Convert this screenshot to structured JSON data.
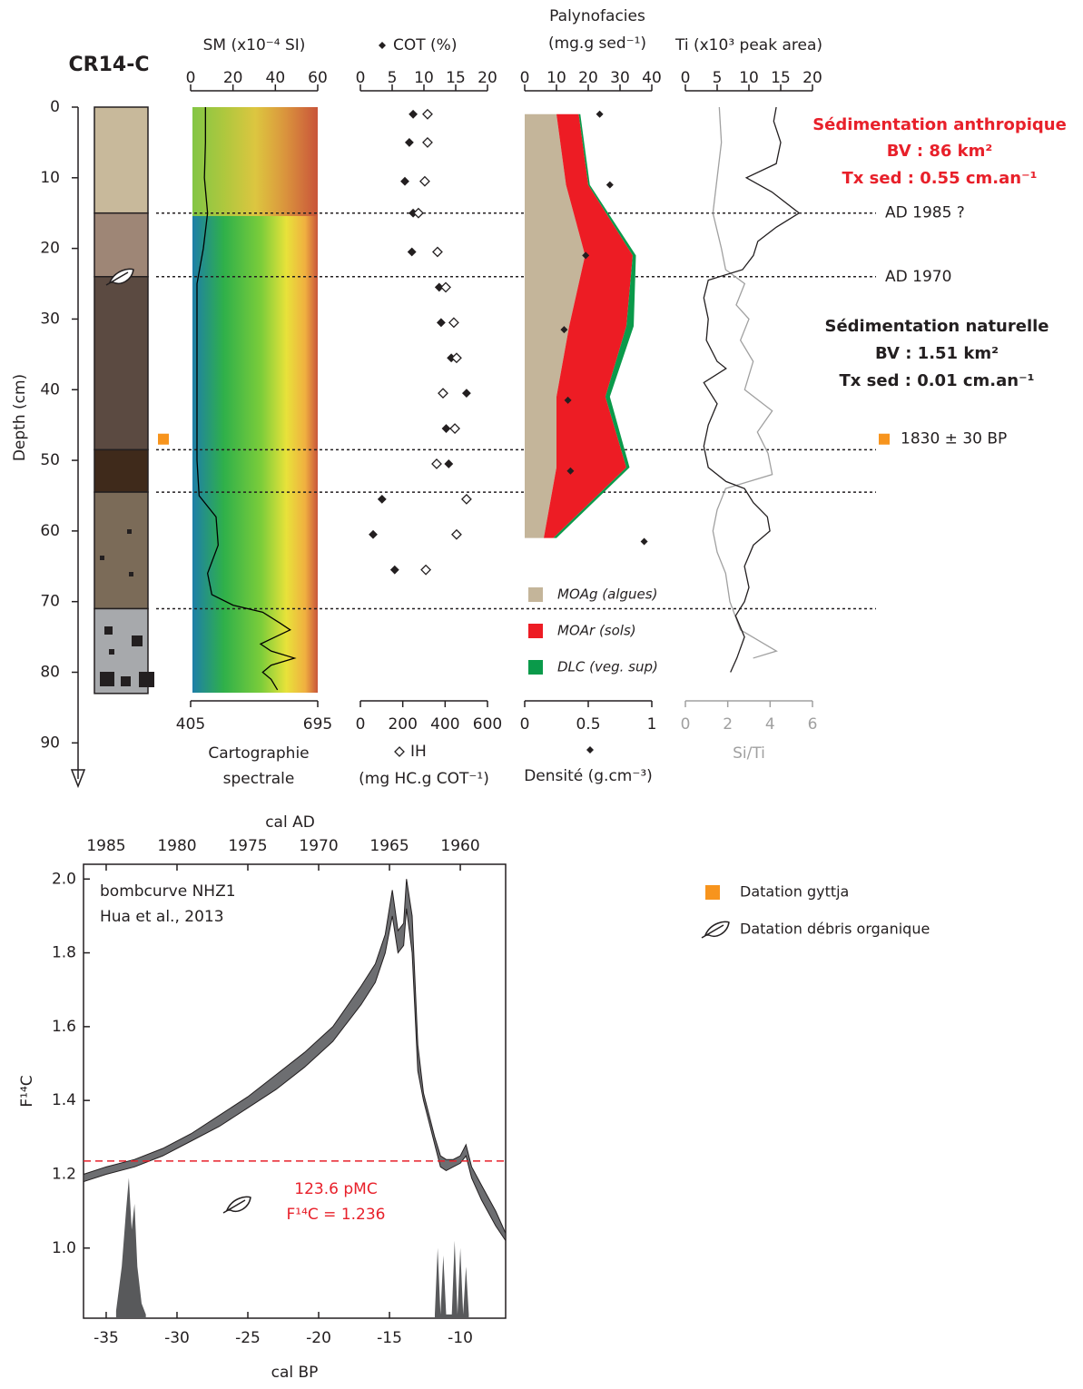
{
  "chart_data": [
    {
      "type": "strat-column",
      "title": "CR14-C",
      "ylabel": "Depth (cm)",
      "ylim": [
        0,
        96
      ],
      "yticks": [
        0,
        10,
        20,
        30,
        40,
        50,
        60,
        70,
        80,
        90
      ],
      "units": {
        "depths": [
          0,
          15,
          24,
          48.5,
          54.5,
          71,
          83
        ],
        "colors": [
          "#c8b99b",
          "#9e8676",
          "#5b4a41",
          "#3f2a1b",
          "#7b6b58",
          "#a7a9ac"
        ]
      },
      "horizons": [
        15,
        24,
        48.5,
        54.5,
        71
      ],
      "ages": [
        {
          "depth": 15,
          "label": "AD 1985 ?"
        },
        {
          "depth": 24,
          "label": "AD 1970"
        },
        {
          "depth": 47,
          "label": "1830 ± 30 BP",
          "marker_color": "#f7941d"
        }
      ],
      "annotations": [
        {
          "lines": [
            "Sédimentation anthropique",
            "BV : 86 km²",
            "Tx sed : 0.55 cm.an⁻¹"
          ],
          "color": "#e8202a"
        },
        {
          "lines": [
            "Sédimentation naturelle",
            "BV : 1.51 km²",
            "Tx sed : 0.01 cm.an⁻¹"
          ],
          "color": "#231f20"
        }
      ],
      "legend": [
        {
          "label": "Datation gyttja",
          "color": "#f7941d"
        },
        {
          "label": "Datation débris organique"
        }
      ]
    },
    {
      "type": "line",
      "title": "SM (x10⁻⁴ SI)",
      "xlim": [
        0,
        60
      ],
      "xticks": [
        0,
        20,
        40,
        60
      ],
      "color": "#000000",
      "depth": [
        0,
        5,
        10,
        15,
        20,
        25,
        30,
        35,
        40,
        45,
        50,
        55,
        58,
        62,
        66,
        69,
        70.5,
        71.5,
        73,
        74,
        75,
        76,
        77,
        78,
        79,
        80,
        81,
        82.5
      ],
      "values": [
        7,
        7,
        6.5,
        8,
        6,
        3,
        3,
        3,
        3,
        3,
        3,
        4,
        12,
        13,
        8,
        10,
        20,
        34,
        42,
        47,
        40,
        33,
        38,
        49,
        38,
        34,
        38,
        41
      ],
      "x2lim": [
        405,
        695
      ],
      "x2ticks": [
        405,
        695
      ],
      "x2label": [
        "Cartographie",
        "spectrale"
      ]
    },
    {
      "type": "scatter",
      "xlim": [
        0,
        20
      ],
      "xticks": [
        0,
        5,
        10,
        15,
        20
      ],
      "x2lim": [
        0,
        600
      ],
      "x2ticks": [
        0,
        200,
        400,
        600
      ],
      "x2label": "(mg HC.g COT⁻¹)",
      "series": [
        {
          "name": "COT (%)",
          "marker": "filled",
          "depth": [
            1,
            5,
            10.5,
            15,
            20.5,
            25.5,
            30.5,
            35.5,
            40.5,
            45.5,
            50.5,
            55.5,
            60.5,
            65.5
          ],
          "values": [
            8.3,
            7.7,
            7,
            8.3,
            8.1,
            12.4,
            12.7,
            14.3,
            16.7,
            13.5,
            13.9,
            3.4,
            2,
            5.4
          ]
        },
        {
          "name": "IH",
          "marker": "hollow",
          "axis": "x2",
          "depth": [
            1,
            5,
            10.5,
            15,
            20.5,
            25.5,
            30.5,
            35.5,
            40.5,
            45.5,
            50.5,
            55.5,
            60.5,
            65.5
          ],
          "values": [
            317,
            317,
            304,
            274,
            364,
            403,
            441,
            454,
            390,
            446,
            360,
            501,
            454,
            309
          ]
        }
      ]
    },
    {
      "type": "stacked-area",
      "title": [
        "Palynofacies",
        "(mg.g sed⁻¹)"
      ],
      "xlim": [
        0,
        40
      ],
      "xticks": [
        0,
        10,
        20,
        30,
        40
      ],
      "depth": [
        1,
        11,
        21,
        31,
        41,
        51,
        61
      ],
      "series": [
        {
          "name": "MOAg (algues)",
          "color": "#c4b59a",
          "values": [
            10,
            13,
            19,
            14,
            10,
            10,
            6
          ]
        },
        {
          "name": "MOAr (sols)",
          "color": "#ed1c24",
          "values": [
            7,
            7,
            15,
            18,
            15.4,
            22,
            3
          ]
        },
        {
          "name": "DLC (veg. sup)",
          "color": "#0a9a4a",
          "values": [
            0.5,
            0.5,
            1,
            2.3,
            1.4,
            1,
            1
          ]
        }
      ],
      "density": {
        "name": "Densité (g.cm⁻³)",
        "depth": [
          1,
          11,
          21,
          31.5,
          41.5,
          51.5,
          61.5
        ],
        "values": [
          0.59,
          0.67,
          0.48,
          0.31,
          0.34,
          0.36,
          0.94
        ]
      },
      "x2lim": [
        0,
        1
      ],
      "x2ticks": [
        0,
        0.5,
        1
      ]
    },
    {
      "type": "line",
      "title": "Ti (x10³ peak area)",
      "xlim": [
        0,
        20
      ],
      "xticks": [
        0,
        5,
        10,
        15,
        20
      ],
      "color": "#231f20",
      "depth": [
        0,
        2,
        5,
        8,
        10,
        12,
        15,
        17,
        19,
        21,
        23,
        24.5,
        27,
        30,
        33,
        36,
        37,
        39,
        42,
        45,
        48,
        51,
        53,
        54,
        56,
        58,
        60,
        62,
        65,
        68,
        70,
        72,
        75,
        78,
        80
      ],
      "values": [
        14.3,
        13.9,
        15,
        14.3,
        9.6,
        13.6,
        17.9,
        14.3,
        11.4,
        10.7,
        9,
        3.6,
        2.9,
        3.6,
        3.3,
        5,
        6.4,
        2.9,
        5,
        3.6,
        2.9,
        3.6,
        6.4,
        9.3,
        10.7,
        12.9,
        13.3,
        10.7,
        9.3,
        10,
        9.3,
        7.9,
        9.3,
        8.1,
        7.1
      ],
      "x2": {
        "name": "Si/Ti",
        "color": "#a0a0a0",
        "depth": [
          0,
          5,
          10,
          15,
          20,
          23,
          25,
          28,
          30,
          33,
          36,
          40,
          43,
          46,
          49,
          52,
          54,
          57,
          60,
          63,
          66,
          70,
          74,
          77,
          78
        ],
        "values": [
          1.6,
          1.7,
          1.5,
          1.3,
          1.7,
          1.9,
          2.8,
          2.4,
          3,
          2.6,
          3.2,
          2.8,
          4.1,
          3.4,
          3.9,
          4.1,
          1.9,
          1.5,
          1.3,
          1.5,
          1.9,
          2.1,
          2.6,
          4.3,
          3.2
        ]
      },
      "x2lim": [
        0,
        6
      ],
      "x2ticks": [
        0,
        2,
        4,
        6
      ]
    },
    {
      "type": "band",
      "xlabel": "cal BP",
      "ylabel": "F¹⁴C",
      "xlim": [
        -36.6,
        -6.8
      ],
      "xticks": [
        -35,
        -30,
        -25,
        -20,
        -15,
        -10
      ],
      "x2label": "cal AD",
      "x2lim": [
        1986.6,
        1956.8
      ],
      "x2ticks": [
        1985,
        1980,
        1975,
        1970,
        1965,
        1960
      ],
      "ylim": [
        0.81,
        2.04
      ],
      "yticks": [
        {
          "value": 1,
          "label": "1.0"
        },
        1.2,
        1.4,
        1.6,
        1.8,
        {
          "value": 2,
          "label": "2.0"
        }
      ],
      "annotations": [
        "bombcurve NHZ1",
        "Hua et al., 2013"
      ],
      "color": "#6d6e71",
      "x": [
        -36.6,
        -35,
        -33,
        -31,
        -29,
        -27,
        -25,
        -23,
        -21,
        -19,
        -17,
        -16,
        -15.3,
        -14.8,
        -14.4,
        -14,
        -13.8,
        -13.4,
        -13,
        -12.6,
        -12.2,
        -11.8,
        -11.4,
        -11,
        -10.5,
        -10,
        -9.6,
        -9.2,
        -8.5,
        -7.5,
        -6.8
      ],
      "upper": [
        1.2,
        1.22,
        1.24,
        1.27,
        1.31,
        1.36,
        1.41,
        1.47,
        1.53,
        1.6,
        1.71,
        1.77,
        1.85,
        1.97,
        1.86,
        1.88,
        2.0,
        1.9,
        1.55,
        1.42,
        1.36,
        1.3,
        1.25,
        1.24,
        1.24,
        1.25,
        1.28,
        1.22,
        1.17,
        1.1,
        1.04
      ],
      "lower": [
        1.18,
        1.2,
        1.22,
        1.25,
        1.29,
        1.33,
        1.38,
        1.43,
        1.49,
        1.56,
        1.66,
        1.72,
        1.8,
        1.9,
        1.8,
        1.82,
        1.92,
        1.8,
        1.48,
        1.4,
        1.34,
        1.28,
        1.22,
        1.21,
        1.22,
        1.23,
        1.25,
        1.19,
        1.13,
        1.06,
        1.02
      ],
      "probability": {
        "x": [
          -34.3,
          -33.9,
          -33.6,
          -33.4,
          -33.2,
          -33.0,
          -32.8,
          -32.5,
          -32.2,
          null,
          -11.8,
          -11.6,
          -11.4,
          -11.2,
          -11.0,
          -10.6,
          -10.4,
          -10.2,
          -10.0,
          -9.8,
          -9.6,
          -9.4
        ],
        "values": [
          0.83,
          0.95,
          1.1,
          1.19,
          1.05,
          1.12,
          0.95,
          0.85,
          0.82,
          null,
          0.82,
          1.0,
          0.82,
          0.98,
          0.82,
          0.82,
          1.02,
          0.82,
          1.0,
          0.82,
          0.95,
          0.82
        ]
      },
      "dating": {
        "value": 1.236,
        "labels": [
          "123.6 pMC",
          "F¹⁴C = 1.236"
        ],
        "color": "#e8202a"
      }
    }
  ]
}
